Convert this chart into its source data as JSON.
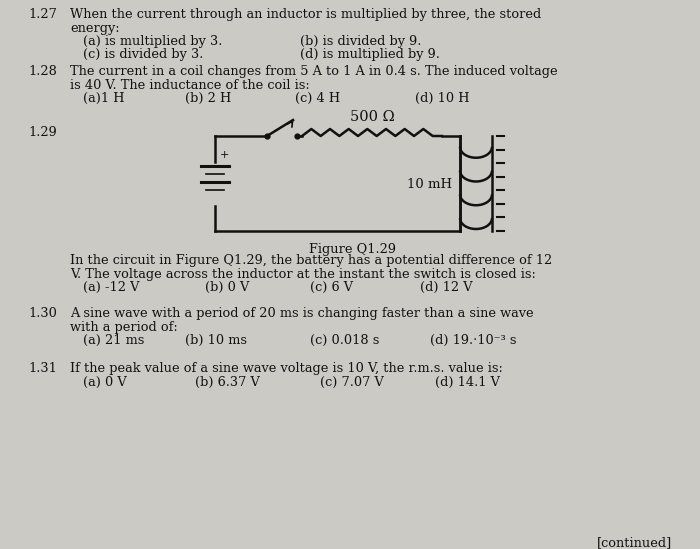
{
  "bg_color": "#cccac4",
  "text_color": "#1a1a1a",
  "font_size": 9.5,
  "q127_number": "1.27",
  "q127_line1": "When the current through an inductor is multiplied by three, the stored",
  "q127_line2": "energy:",
  "q127_a": "(a) is multiplied by 3.",
  "q127_b": "(b) is divided by 9.",
  "q127_c": "(c) is divided by 3.",
  "q127_d": "(d) is multiplied by 9.",
  "q128_number": "1.28",
  "q128_line1": "The current in a coil changes from 5 A to 1 A in 0.4 s. The induced voltage",
  "q128_line2": "is 40 V. The inductance of the coil is:",
  "q128_a": "(a)1 H",
  "q128_b": "(b) 2 H",
  "q128_c": "(c) 4 H",
  "q128_d": "(d) 10 H",
  "q129_number": "1.29",
  "q129_resistor": "500 Ω",
  "q129_inductor": "10 mH",
  "q129_caption": "Figure Q1.29",
  "q129_line1": "In the circuit in Figure Q1.29, the battery has a potential difference of 12",
  "q129_line2": "V. The voltage across the inductor at the instant the switch is closed is:",
  "q129_a": "(a) -12 V",
  "q129_b": "(b) 0 V",
  "q129_c": "(c) 6 V",
  "q129_d": "(d) 12 V",
  "q130_number": "1.30",
  "q130_line1": "A sine wave with a period of 20 ms is changing faster than a sine wave",
  "q130_line2": "with a period of:",
  "q130_a": "(a) 21 ms",
  "q130_b": "(b) 10 ms",
  "q130_c": "(c) 0.018 s",
  "q130_d": "(d) 19.·10⁻³ s",
  "q131_number": "1.31",
  "q131_line1": "If the peak value of a sine wave voltage is 10 V, the r.m.s. value is:",
  "q131_a": "(a) 0 V",
  "q131_b": "(b) 6.37 V",
  "q131_c": "(c) 7.07 V",
  "q131_d": "(d) 14.1 V",
  "continued": "[continued]"
}
